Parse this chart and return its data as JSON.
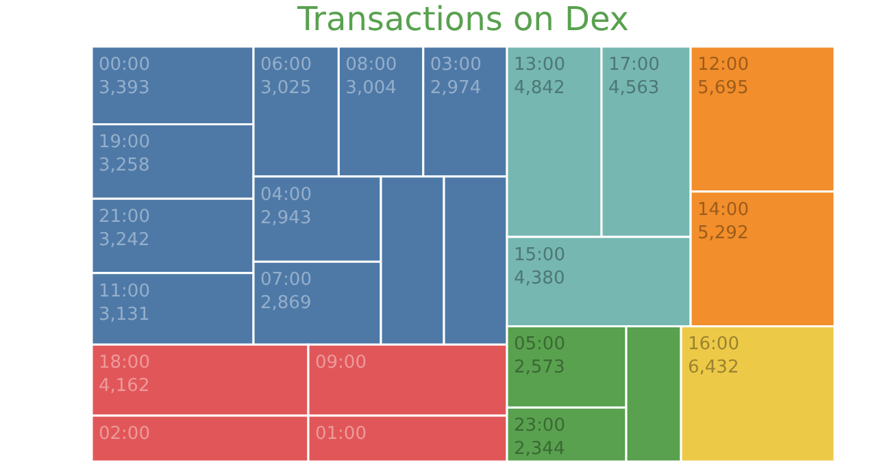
{
  "chart_data": {
    "type": "other",
    "title": "Transactions on Dex",
    "categories": [
      "00:00",
      "19:00",
      "21:00",
      "11:00",
      "06:00",
      "08:00",
      "03:00",
      "04:00",
      "07:00",
      null,
      null,
      "13:00",
      "17:00",
      "15:00",
      "12:00",
      "14:00",
      "18:00",
      "09:00",
      "02:00",
      "01:00",
      "05:00",
      "23:00",
      null,
      "16:00"
    ],
    "values": [
      3393,
      3258,
      3242,
      3131,
      3025,
      3004,
      2974,
      2943,
      2869,
      null,
      null,
      4842,
      4563,
      4380,
      5695,
      5292,
      4162,
      null,
      null,
      null,
      2573,
      2344,
      null,
      6432
    ],
    "value_labels": [
      "3,393",
      "3,258",
      "3,242",
      "3,131",
      "3,025",
      "3,004",
      "2,974",
      "2,943",
      "2,869",
      null,
      null,
      "4,842",
      "4,563",
      "4,380",
      "5,695",
      "5,292",
      "4,162",
      null,
      null,
      null,
      "2,573",
      "2,344",
      null,
      "6,432"
    ],
    "colors": [
      "#4e79a7",
      "#4e79a7",
      "#4e79a7",
      "#4e79a7",
      "#4e79a7",
      "#4e79a7",
      "#4e79a7",
      "#4e79a7",
      "#4e79a7",
      "#4e79a7",
      "#4e79a7",
      "#76b7b2",
      "#76b7b2",
      "#76b7b2",
      "#f28e2b",
      "#f28e2b",
      "#e15759",
      "#e15759",
      "#e15759",
      "#e15759",
      "#59a14f",
      "#59a14f",
      "#59a14f",
      "#edc948"
    ]
  }
}
